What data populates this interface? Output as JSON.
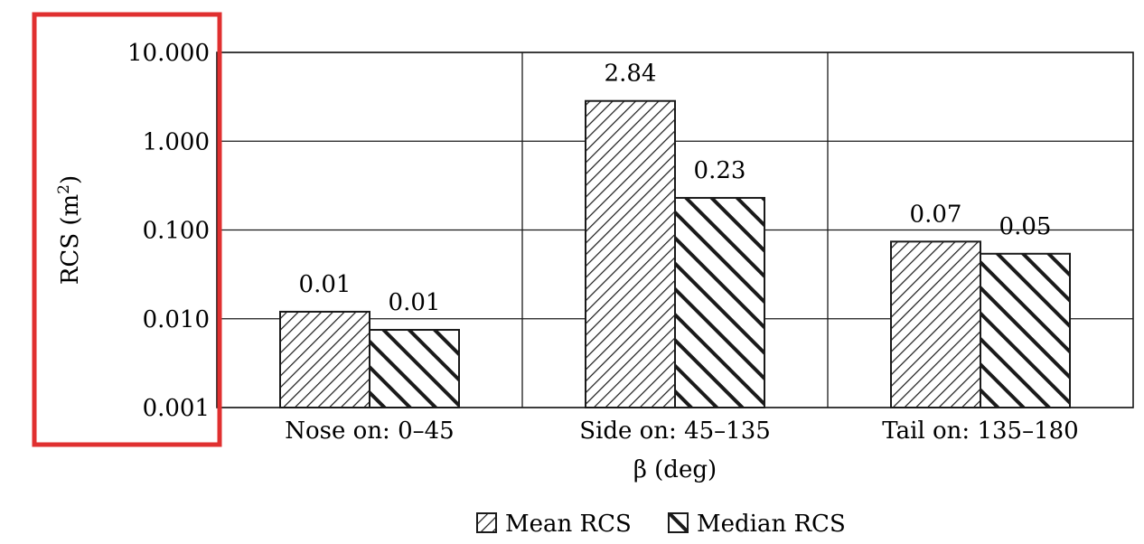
{
  "chart_data": {
    "type": "bar",
    "title": "",
    "xlabel": "β (deg)",
    "ylabel": "RCS (m",
    "ylabel_sup": "2",
    "ylabel_close": ")",
    "yscale": "log",
    "ylim": [
      0.001,
      10
    ],
    "yticks": [
      {
        "value": 10,
        "label": "10.000"
      },
      {
        "value": 1,
        "label": "1.000"
      },
      {
        "value": 0.1,
        "label": "0.100"
      },
      {
        "value": 0.01,
        "label": "0.010"
      },
      {
        "value": 0.001,
        "label": "0.001"
      }
    ],
    "categories": [
      "Nose on:  0–45",
      "Side on: 45–135",
      "Tail on: 135–180"
    ],
    "series": [
      {
        "name": "Mean RCS",
        "pattern": "fine-diagonal-hatch",
        "values": [
          0.012,
          2.84,
          0.074
        ],
        "labels": [
          "0.01",
          "2.84",
          "0.07"
        ]
      },
      {
        "name": "Median RCS",
        "pattern": "coarse-backslash-hatch",
        "values": [
          0.0075,
          0.23,
          0.054
        ],
        "labels": [
          "0.01",
          "0.23",
          "0.05"
        ]
      }
    ],
    "grid": true,
    "legend": "bottom-center",
    "highlight": {
      "target": "y-axis",
      "color": "#e03030"
    }
  }
}
